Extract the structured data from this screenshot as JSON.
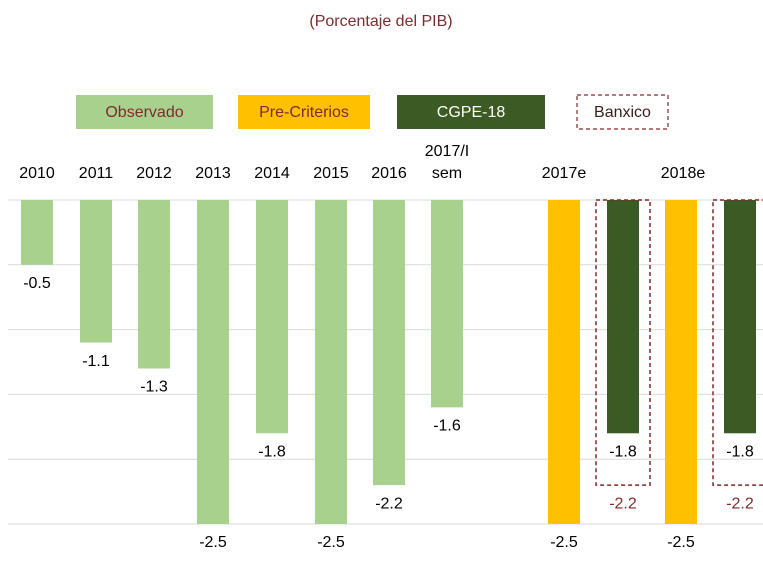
{
  "chart_data": {
    "type": "bar",
    "title": "(Porcentaje del PIB)",
    "categories": [
      "2010",
      "2011",
      "2012",
      "2013",
      "2014",
      "2015",
      "2016",
      "2017/I sem",
      "2017e",
      "2018e"
    ],
    "series": [
      {
        "name": "Observado",
        "color": "#a9d18e",
        "values": [
          -0.5,
          -1.1,
          -1.3,
          -2.5,
          -1.8,
          -2.5,
          -2.2,
          -1.6,
          null,
          null
        ]
      },
      {
        "name": "Pre-Criterios",
        "color": "#ffc000",
        "values": [
          null,
          null,
          null,
          null,
          null,
          null,
          null,
          null,
          -2.5,
          -2.5
        ]
      },
      {
        "name": "CGPE-18",
        "color": "#3b5a24",
        "values": [
          null,
          null,
          null,
          null,
          null,
          null,
          null,
          null,
          -1.8,
          -1.8
        ]
      },
      {
        "name": "Banxico",
        "color": "#7f2a2a",
        "values": [
          null,
          null,
          null,
          null,
          null,
          null,
          null,
          null,
          -2.2,
          -2.2
        ]
      }
    ],
    "ylim": [
      -2.5,
      0
    ],
    "yticks": [
      0,
      -0.5,
      -1,
      -1.5,
      -2,
      -2.5
    ],
    "grid": true
  }
}
